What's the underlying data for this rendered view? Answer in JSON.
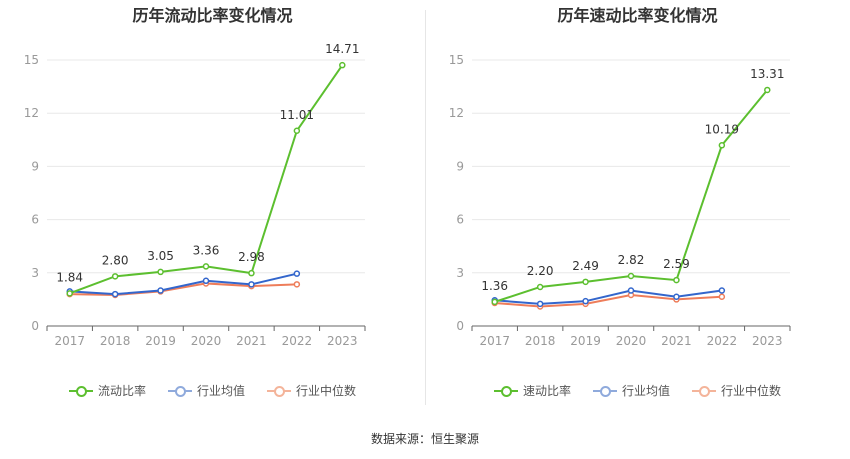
{
  "source_text": "数据来源：恒生聚源",
  "colors": {
    "main": "#5cbf2f",
    "avg": "#3366cc",
    "median": "#ee7d5a",
    "avg_legend": "#8faadc",
    "median_legend": "#f4b49a"
  },
  "chart_data": [
    {
      "type": "line",
      "title": "历年流动比率变化情况",
      "categories": [
        "2017",
        "2018",
        "2019",
        "2020",
        "2021",
        "2022",
        "2023"
      ],
      "ylim": [
        0,
        15
      ],
      "yticks": [
        "0",
        "3",
        "6",
        "9",
        "12",
        "15"
      ],
      "grid": true,
      "legend_position": "bottom",
      "series": [
        {
          "name": "流动比率",
          "values": [
            1.84,
            2.8,
            3.05,
            3.36,
            2.98,
            11.01,
            14.71
          ],
          "labels": [
            "1.84",
            "2.80",
            "3.05",
            "3.36",
            "2.98",
            "11.01",
            "14.71"
          ]
        },
        {
          "name": "行业均值",
          "values": [
            1.95,
            1.8,
            2.0,
            2.55,
            2.35,
            2.95,
            null
          ]
        },
        {
          "name": "行业中位数",
          "values": [
            1.8,
            1.75,
            1.95,
            2.4,
            2.25,
            2.35,
            null
          ]
        }
      ]
    },
    {
      "type": "line",
      "title": "历年速动比率变化情况",
      "categories": [
        "2017",
        "2018",
        "2019",
        "2020",
        "2021",
        "2022",
        "2023"
      ],
      "ylim": [
        0,
        15
      ],
      "yticks": [
        "0",
        "3",
        "6",
        "9",
        "12",
        "15"
      ],
      "grid": true,
      "legend_position": "bottom",
      "series": [
        {
          "name": "速动比率",
          "values": [
            1.36,
            2.2,
            2.49,
            2.82,
            2.59,
            10.19,
            13.31
          ],
          "labels": [
            "1.36",
            "2.20",
            "2.49",
            "2.82",
            "2.59",
            "10.19",
            "13.31"
          ]
        },
        {
          "name": "行业均值",
          "values": [
            1.45,
            1.25,
            1.4,
            2.0,
            1.65,
            2.0,
            null
          ]
        },
        {
          "name": "行业中位数",
          "values": [
            1.3,
            1.1,
            1.25,
            1.75,
            1.5,
            1.65,
            null
          ]
        }
      ]
    }
  ]
}
